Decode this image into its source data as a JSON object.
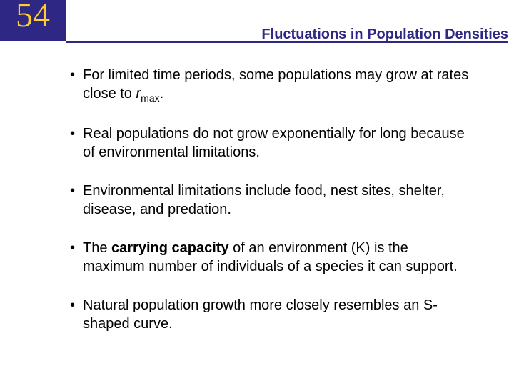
{
  "header": {
    "chapter_number": "54",
    "title": "Fluctuations in Population Densities",
    "chapter_bg_color": "#2e2784",
    "chapter_text_color": "#ffcc33",
    "title_color": "#2e2784",
    "underline_color": "#2e2784"
  },
  "bullets": {
    "b1_pre": "For limited time periods, some populations may grow at rates close to ",
    "b1_r": "r",
    "b1_sub": "max",
    "b1_post": ".",
    "b2": "Real populations do not grow exponentially for long because of environmental limitations.",
    "b3": "Environmental limitations include food, nest sites, shelter, disease, and predation.",
    "b4_pre": "The ",
    "b4_bold": "carrying capacity",
    "b4_post": " of an environment (K) is the maximum number of individuals of a species it can support.",
    "b5": "Natural population growth more closely resembles an S-shaped curve."
  },
  "style": {
    "body_fontsize": 20,
    "title_fontsize": 20,
    "chapter_fontsize": 48,
    "text_color": "#000000",
    "background_color": "#ffffff"
  }
}
